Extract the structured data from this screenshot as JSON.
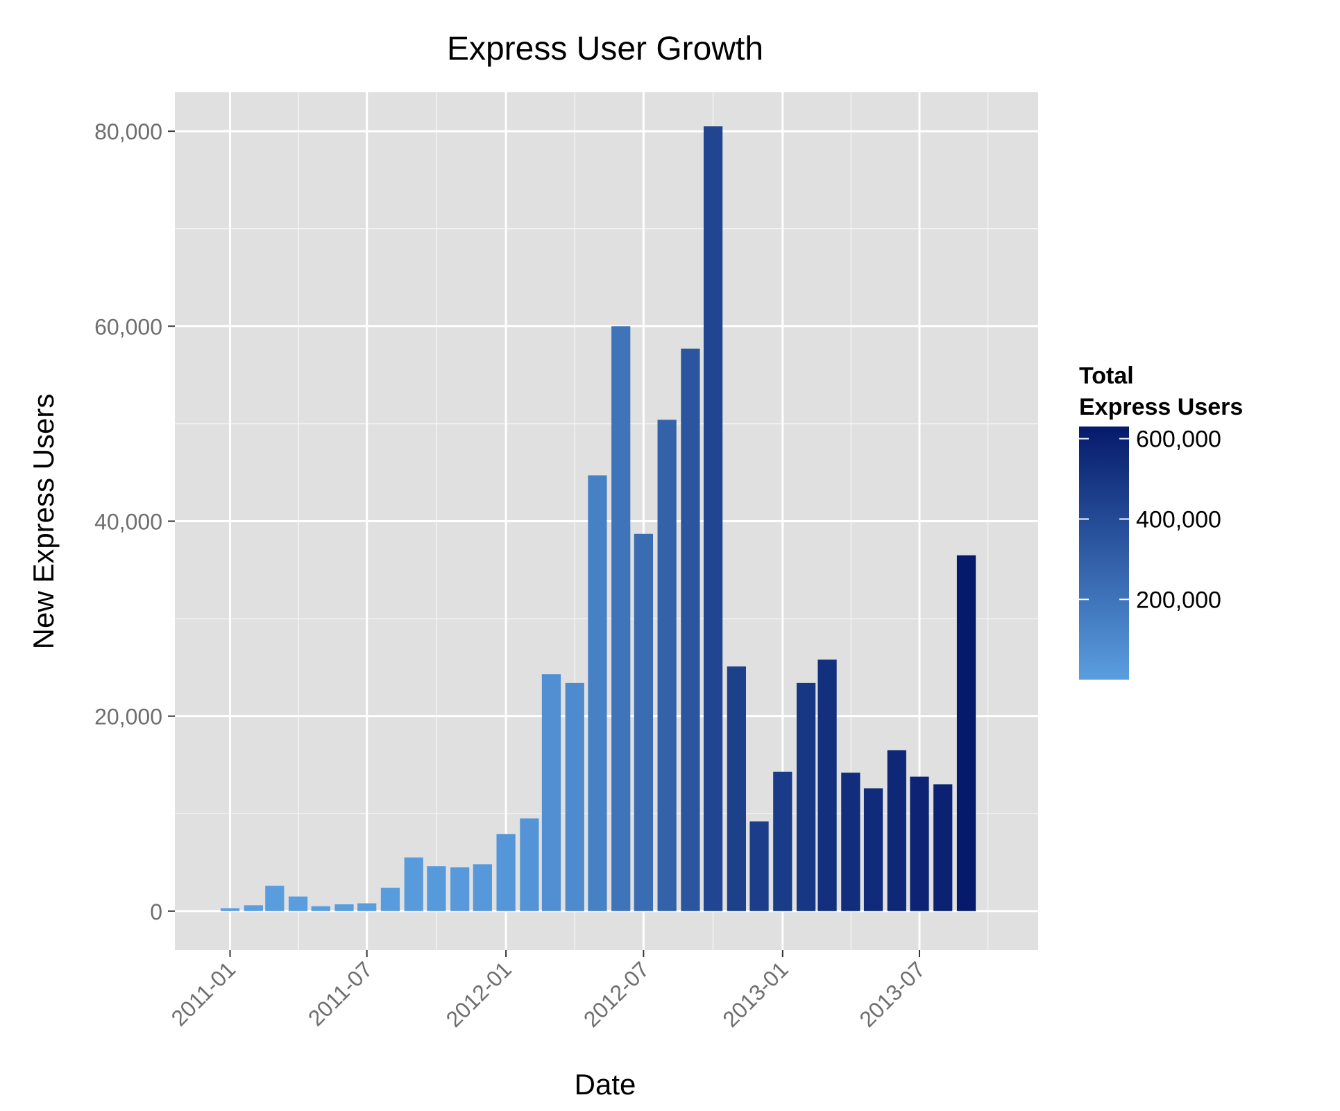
{
  "chart_data": {
    "type": "bar",
    "title": "Express User Growth",
    "xlabel": "Date",
    "ylabel": "New Express Users",
    "ylim": [
      -4000,
      84000
    ],
    "y_ticks": [
      0,
      20000,
      40000,
      60000,
      80000
    ],
    "y_tick_labels": [
      "0",
      "20,000",
      "40,000",
      "60,000",
      "80,000"
    ],
    "x_ticks": [
      "2011-01-01",
      "2011-07-01",
      "2012-01-01",
      "2012-07-01",
      "2013-01-01",
      "2013-07-01"
    ],
    "x_tick_labels": [
      "2011-01",
      "2011-07",
      "2012-01",
      "2012-07",
      "2013-01",
      "2013-07"
    ],
    "grid": true,
    "categories": [
      "2011-01",
      "2011-02",
      "2011-03",
      "2011-04",
      "2011-05",
      "2011-06",
      "2011-07",
      "2011-08",
      "2011-09",
      "2011-10",
      "2011-11",
      "2011-12",
      "2012-01",
      "2012-02",
      "2012-03",
      "2012-04",
      "2012-05",
      "2012-06",
      "2012-07",
      "2012-08",
      "2012-09",
      "2012-10",
      "2012-11",
      "2012-12",
      "2013-01",
      "2013-02",
      "2013-03",
      "2013-04",
      "2013-05",
      "2013-06",
      "2013-07",
      "2013-08",
      "2013-09"
    ],
    "values": [
      300,
      600,
      2600,
      1500,
      500,
      700,
      800,
      2400,
      5500,
      4600,
      4500,
      4800,
      7900,
      9500,
      24300,
      23400,
      44700,
      60000,
      38700,
      50400,
      57700,
      80500,
      25100,
      9200,
      14300,
      23400,
      25800,
      14200,
      12600,
      16500,
      13800,
      13000,
      36500
    ],
    "color_values": [
      300,
      900,
      3500,
      5000,
      5500,
      6200,
      7000,
      9400,
      14900,
      19500,
      24000,
      28800,
      36700,
      46200,
      70500,
      93900,
      138600,
      198600,
      237300,
      287700,
      345400,
      425900,
      451000,
      460200,
      474500,
      497900,
      523700,
      537900,
      550500,
      567000,
      580800,
      593800,
      630300
    ],
    "legend": {
      "title": "Total Express Users",
      "title_lines": [
        "Total",
        "Express Users"
      ],
      "position": "right",
      "range": [
        300,
        630300
      ],
      "ticks": [
        200000,
        400000,
        600000
      ],
      "tick_labels": [
        "200,000",
        "400,000",
        "600,000"
      ],
      "color_low": "#5a9edf",
      "color_high": "#051a6a"
    },
    "panel_background": "#e0e0e0",
    "grid_color": "#ffffff"
  }
}
